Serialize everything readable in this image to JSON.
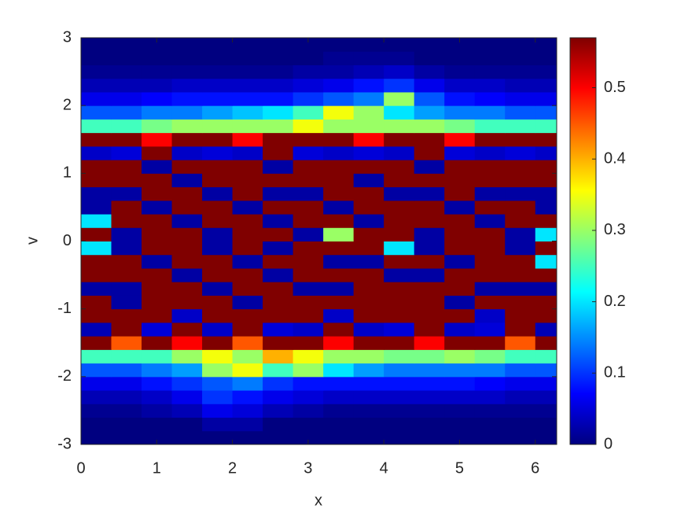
{
  "chart_data": {
    "type": "heatmap",
    "xlabel": "x",
    "ylabel": "v",
    "xlim": [
      0,
      6.283
    ],
    "ylim": [
      -3,
      3
    ],
    "xticks": [
      0,
      1,
      2,
      3,
      4,
      5,
      6
    ],
    "yticks": [
      -3,
      -2,
      -1,
      0,
      1,
      2,
      3
    ],
    "clim": [
      0,
      0.57
    ],
    "cticks": [
      0,
      0.1,
      0.2,
      0.3,
      0.4,
      0.5
    ],
    "colormap": "jet",
    "colorbar": true,
    "x": [
      0.2,
      0.6,
      1.0,
      1.4,
      1.8,
      2.2,
      2.6,
      3.0,
      3.4,
      3.8,
      4.2,
      4.6,
      5.0,
      5.4,
      5.8,
      6.2
    ],
    "y": [
      -2.9,
      -2.7,
      -2.5,
      -2.3,
      -2.1,
      -1.9,
      -1.7,
      -1.5,
      -1.3,
      -1.1,
      -0.9,
      -0.7,
      -0.5,
      -0.3,
      -0.1,
      0.1,
      0.3,
      0.5,
      0.7,
      0.9,
      1.1,
      1.3,
      1.5,
      1.7,
      1.9,
      2.1,
      2.3,
      2.5,
      2.7,
      2.9
    ],
    "z": [
      [
        0,
        0,
        0,
        0,
        0,
        0,
        0,
        0,
        0,
        0,
        0,
        0,
        0,
        0,
        0,
        0
      ],
      [
        0,
        0,
        0,
        0,
        0.02,
        0.02,
        0,
        0,
        0,
        0,
        0,
        0,
        0,
        0,
        0,
        0
      ],
      [
        0.01,
        0.01,
        0.02,
        0.03,
        0.06,
        0.05,
        0.03,
        0.02,
        0.01,
        0.01,
        0.01,
        0.01,
        0.01,
        0.01,
        0.01,
        0.01
      ],
      [
        0.03,
        0.03,
        0.04,
        0.06,
        0.1,
        0.08,
        0.06,
        0.05,
        0.04,
        0.04,
        0.04,
        0.04,
        0.04,
        0.04,
        0.03,
        0.03
      ],
      [
        0.06,
        0.06,
        0.08,
        0.1,
        0.12,
        0.14,
        0.1,
        0.08,
        0.08,
        0.08,
        0.08,
        0.08,
        0.08,
        0.07,
        0.06,
        0.06
      ],
      [
        0.12,
        0.12,
        0.14,
        0.16,
        0.3,
        0.35,
        0.25,
        0.3,
        0.2,
        0.16,
        0.14,
        0.14,
        0.14,
        0.14,
        0.12,
        0.12
      ],
      [
        0.25,
        0.25,
        0.25,
        0.3,
        0.35,
        0.3,
        0.4,
        0.35,
        0.3,
        0.3,
        0.28,
        0.28,
        0.3,
        0.28,
        0.25,
        0.25
      ],
      [
        0.57,
        0.45,
        0.57,
        0.5,
        0.57,
        0.45,
        0.57,
        0.57,
        0.5,
        0.57,
        0.57,
        0.5,
        0.57,
        0.57,
        0.45,
        0.57
      ],
      [
        0.03,
        0.57,
        0.05,
        0.57,
        0.04,
        0.57,
        0.05,
        0.04,
        0.57,
        0.04,
        0.05,
        0.57,
        0.04,
        0.05,
        0.57,
        0.03
      ],
      [
        0.57,
        0.57,
        0.57,
        0.04,
        0.57,
        0.57,
        0.57,
        0.57,
        0.04,
        0.57,
        0.57,
        0.57,
        0.57,
        0.04,
        0.57,
        0.57
      ],
      [
        0.57,
        0.02,
        0.57,
        0.57,
        0.57,
        0.02,
        0.57,
        0.57,
        0.57,
        0.57,
        0.57,
        0.57,
        0.02,
        0.57,
        0.57,
        0.57
      ],
      [
        0.02,
        0.02,
        0.57,
        0.57,
        0.02,
        0.57,
        0.57,
        0.02,
        0.02,
        0.57,
        0.57,
        0.57,
        0.57,
        0.02,
        0.02,
        0.02
      ],
      [
        0.57,
        0.57,
        0.57,
        0.02,
        0.57,
        0.57,
        0.02,
        0.57,
        0.57,
        0.57,
        0.02,
        0.02,
        0.57,
        0.57,
        0.57,
        0.57
      ],
      [
        0.57,
        0.57,
        0.02,
        0.57,
        0.57,
        0.02,
        0.57,
        0.57,
        0.02,
        0.02,
        0.57,
        0.57,
        0.02,
        0.57,
        0.57,
        0.2
      ],
      [
        0.2,
        0.02,
        0.57,
        0.57,
        0.02,
        0.57,
        0.02,
        0.57,
        0.57,
        0.57,
        0.2,
        0.02,
        0.57,
        0.57,
        0.02,
        0.57
      ],
      [
        0.57,
        0.02,
        0.57,
        0.57,
        0.02,
        0.57,
        0.57,
        0.02,
        0.3,
        0.57,
        0.57,
        0.02,
        0.57,
        0.57,
        0.02,
        0.2
      ],
      [
        0.2,
        0.57,
        0.57,
        0.02,
        0.57,
        0.57,
        0.02,
        0.57,
        0.57,
        0.02,
        0.57,
        0.57,
        0.57,
        0.02,
        0.57,
        0.57
      ],
      [
        0.02,
        0.57,
        0.02,
        0.57,
        0.57,
        0.02,
        0.57,
        0.57,
        0.02,
        0.57,
        0.57,
        0.57,
        0.02,
        0.57,
        0.57,
        0.02
      ],
      [
        0.02,
        0.02,
        0.57,
        0.57,
        0.02,
        0.57,
        0.02,
        0.02,
        0.57,
        0.57,
        0.02,
        0.02,
        0.57,
        0.02,
        0.02,
        0.02
      ],
      [
        0.57,
        0.57,
        0.57,
        0.02,
        0.57,
        0.57,
        0.57,
        0.57,
        0.57,
        0.02,
        0.57,
        0.57,
        0.57,
        0.57,
        0.57,
        0.57
      ],
      [
        0.57,
        0.57,
        0.02,
        0.57,
        0.57,
        0.57,
        0.02,
        0.57,
        0.57,
        0.57,
        0.57,
        0.02,
        0.57,
        0.57,
        0.57,
        0.57
      ],
      [
        0.04,
        0.05,
        0.57,
        0.04,
        0.05,
        0.04,
        0.57,
        0.05,
        0.04,
        0.05,
        0.04,
        0.57,
        0.05,
        0.04,
        0.05,
        0.04
      ],
      [
        0.57,
        0.57,
        0.5,
        0.57,
        0.57,
        0.5,
        0.57,
        0.57,
        0.57,
        0.5,
        0.57,
        0.57,
        0.5,
        0.57,
        0.57,
        0.57
      ],
      [
        0.25,
        0.25,
        0.28,
        0.3,
        0.3,
        0.3,
        0.3,
        0.35,
        0.3,
        0.3,
        0.3,
        0.3,
        0.28,
        0.25,
        0.25,
        0.25
      ],
      [
        0.12,
        0.12,
        0.14,
        0.14,
        0.16,
        0.18,
        0.2,
        0.25,
        0.35,
        0.3,
        0.2,
        0.16,
        0.14,
        0.14,
        0.12,
        0.12
      ],
      [
        0.06,
        0.06,
        0.07,
        0.08,
        0.08,
        0.08,
        0.08,
        0.1,
        0.12,
        0.14,
        0.3,
        0.12,
        0.08,
        0.07,
        0.06,
        0.06
      ],
      [
        0.03,
        0.03,
        0.03,
        0.04,
        0.04,
        0.04,
        0.04,
        0.05,
        0.06,
        0.08,
        0.1,
        0.06,
        0.04,
        0.04,
        0.03,
        0.03
      ],
      [
        0.01,
        0.01,
        0.01,
        0.01,
        0.01,
        0.01,
        0.01,
        0.02,
        0.02,
        0.03,
        0.04,
        0.02,
        0.01,
        0.01,
        0.01,
        0.01
      ],
      [
        0,
        0,
        0,
        0,
        0,
        0,
        0,
        0,
        0.01,
        0.01,
        0.01,
        0,
        0,
        0,
        0,
        0
      ],
      [
        0,
        0,
        0,
        0,
        0,
        0,
        0,
        0,
        0,
        0,
        0,
        0,
        0,
        0,
        0,
        0
      ]
    ]
  }
}
